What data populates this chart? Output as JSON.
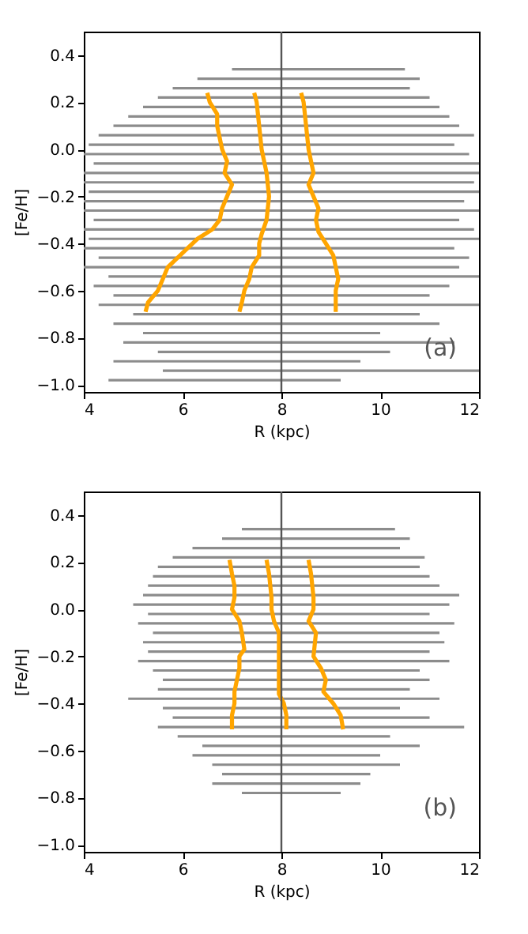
{
  "chart_data": [
    {
      "type": "line",
      "xlabel": "R (kpc)",
      "ylabel": "[Fe/H]",
      "xlim": [
        4,
        12
      ],
      "ylim": [
        -1.03,
        0.5
      ],
      "xticks": [
        4,
        6,
        8,
        10,
        12
      ],
      "yticks": [
        {
          "value": -1.0,
          "label": "−1.0"
        },
        {
          "value": -0.8,
          "label": "−0.8"
        },
        {
          "value": -0.6,
          "label": "−0.6"
        },
        {
          "value": -0.4,
          "label": "−0.4"
        },
        {
          "value": -0.2,
          "label": "−0.2"
        },
        {
          "value": 0,
          "label": "0.0"
        },
        {
          "value": 0.2,
          "label": "0.2"
        },
        {
          "value": 0.4,
          "label": "0.4"
        }
      ],
      "grid": false,
      "legend": false,
      "annotations": [
        "(a)"
      ],
      "ref_lines": [
        {
          "axis": "x",
          "value": 8,
          "color": "#555555"
        }
      ],
      "series": [
        {
          "type": "line",
          "color": "#8c8c8c",
          "x": [
            7.0,
            10.5
          ],
          "values": [
            0.34,
            0.34
          ]
        },
        {
          "type": "line",
          "color": "#8c8c8c",
          "x": [
            6.3,
            10.8
          ],
          "values": [
            0.3,
            0.3
          ]
        },
        {
          "type": "line",
          "color": "#8c8c8c",
          "x": [
            5.8,
            10.6
          ],
          "values": [
            0.26,
            0.26
          ]
        },
        {
          "type": "line",
          "color": "#8c8c8c",
          "x": [
            5.5,
            11.0
          ],
          "values": [
            0.22,
            0.22
          ]
        },
        {
          "type": "line",
          "color": "#8c8c8c",
          "x": [
            5.2,
            11.2
          ],
          "values": [
            0.18,
            0.18
          ]
        },
        {
          "type": "line",
          "color": "#8c8c8c",
          "x": [
            4.9,
            11.4
          ],
          "values": [
            0.14,
            0.14
          ]
        },
        {
          "type": "line",
          "color": "#8c8c8c",
          "x": [
            4.6,
            11.6
          ],
          "values": [
            0.1,
            0.1
          ]
        },
        {
          "type": "line",
          "color": "#8c8c8c",
          "x": [
            4.3,
            11.9
          ],
          "values": [
            0.06,
            0.06
          ]
        },
        {
          "type": "line",
          "color": "#8c8c8c",
          "x": [
            4.1,
            11.5
          ],
          "values": [
            0.02,
            0.02
          ]
        },
        {
          "type": "line",
          "color": "#8c8c8c",
          "x": [
            4.0,
            11.8
          ],
          "values": [
            -0.02,
            -0.02
          ]
        },
        {
          "type": "line",
          "color": "#8c8c8c",
          "x": [
            4.2,
            12.0
          ],
          "values": [
            -0.06,
            -0.06
          ]
        },
        {
          "type": "line",
          "color": "#8c8c8c",
          "x": [
            4.0,
            12.0
          ],
          "values": [
            -0.1,
            -0.1
          ]
        },
        {
          "type": "line",
          "color": "#8c8c8c",
          "x": [
            4.0,
            11.9
          ],
          "values": [
            -0.14,
            -0.14
          ]
        },
        {
          "type": "line",
          "color": "#8c8c8c",
          "x": [
            4.1,
            12.0
          ],
          "values": [
            -0.18,
            -0.18
          ]
        },
        {
          "type": "line",
          "color": "#8c8c8c",
          "x": [
            4.0,
            11.7
          ],
          "values": [
            -0.22,
            -0.22
          ]
        },
        {
          "type": "line",
          "color": "#8c8c8c",
          "x": [
            4.0,
            12.0
          ],
          "values": [
            -0.26,
            -0.26
          ]
        },
        {
          "type": "line",
          "color": "#8c8c8c",
          "x": [
            4.2,
            11.6
          ],
          "values": [
            -0.3,
            -0.3
          ]
        },
        {
          "type": "line",
          "color": "#8c8c8c",
          "x": [
            4.0,
            11.9
          ],
          "values": [
            -0.34,
            -0.34
          ]
        },
        {
          "type": "line",
          "color": "#8c8c8c",
          "x": [
            4.1,
            12.0
          ],
          "values": [
            -0.38,
            -0.38
          ]
        },
        {
          "type": "line",
          "color": "#8c8c8c",
          "x": [
            4.0,
            11.5
          ],
          "values": [
            -0.42,
            -0.42
          ]
        },
        {
          "type": "line",
          "color": "#8c8c8c",
          "x": [
            4.3,
            11.8
          ],
          "values": [
            -0.46,
            -0.46
          ]
        },
        {
          "type": "line",
          "color": "#8c8c8c",
          "x": [
            4.0,
            11.6
          ],
          "values": [
            -0.5,
            -0.5
          ]
        },
        {
          "type": "line",
          "color": "#8c8c8c",
          "x": [
            4.5,
            12.0
          ],
          "values": [
            -0.54,
            -0.54
          ]
        },
        {
          "type": "line",
          "color": "#8c8c8c",
          "x": [
            4.2,
            11.4
          ],
          "values": [
            -0.58,
            -0.58
          ]
        },
        {
          "type": "line",
          "color": "#8c8c8c",
          "x": [
            4.6,
            11.0
          ],
          "values": [
            -0.62,
            -0.62
          ]
        },
        {
          "type": "line",
          "color": "#8c8c8c",
          "x": [
            4.3,
            12.0
          ],
          "values": [
            -0.66,
            -0.66
          ]
        },
        {
          "type": "line",
          "color": "#8c8c8c",
          "x": [
            5.0,
            10.8
          ],
          "values": [
            -0.7,
            -0.7
          ]
        },
        {
          "type": "line",
          "color": "#8c8c8c",
          "x": [
            4.6,
            11.2
          ],
          "values": [
            -0.74,
            -0.74
          ]
        },
        {
          "type": "line",
          "color": "#8c8c8c",
          "x": [
            5.2,
            10.0
          ],
          "values": [
            -0.78,
            -0.78
          ]
        },
        {
          "type": "line",
          "color": "#8c8c8c",
          "x": [
            4.8,
            11.5
          ],
          "values": [
            -0.82,
            -0.82
          ]
        },
        {
          "type": "line",
          "color": "#8c8c8c",
          "x": [
            5.5,
            10.2
          ],
          "values": [
            -0.86,
            -0.86
          ]
        },
        {
          "type": "line",
          "color": "#8c8c8c",
          "x": [
            4.6,
            9.6
          ],
          "values": [
            -0.9,
            -0.9
          ]
        },
        {
          "type": "line",
          "color": "#8c8c8c",
          "x": [
            5.6,
            12.0
          ],
          "values": [
            -0.94,
            -0.94
          ]
        },
        {
          "type": "line",
          "color": "#8c8c8c",
          "x": [
            4.5,
            9.2
          ],
          "values": [
            -0.98,
            -0.98
          ]
        },
        {
          "type": "line",
          "color": "#ffa500",
          "x": [
            6.5,
            6.55,
            6.7,
            6.7,
            6.75,
            6.8,
            6.9,
            6.85,
            7.0,
            6.9,
            6.8,
            6.75,
            6.6,
            6.3,
            6.1,
            5.9,
            5.7,
            5.6,
            5.5,
            5.3,
            5.25
          ],
          "values": [
            0.24,
            0.2,
            0.15,
            0.1,
            0.05,
            0.0,
            -0.05,
            -0.1,
            -0.15,
            -0.2,
            -0.25,
            -0.3,
            -0.34,
            -0.38,
            -0.42,
            -0.46,
            -0.5,
            -0.55,
            -0.6,
            -0.65,
            -0.69
          ]
        },
        {
          "type": "line",
          "color": "#ffa500",
          "x": [
            7.45,
            7.5,
            7.55,
            7.6,
            7.7,
            7.75,
            7.7,
            7.6,
            7.55,
            7.55,
            7.4,
            7.35,
            7.25,
            7.2,
            7.15
          ],
          "values": [
            0.24,
            0.2,
            0.1,
            0.0,
            -0.1,
            -0.2,
            -0.3,
            -0.36,
            -0.4,
            -0.45,
            -0.5,
            -0.55,
            -0.6,
            -0.65,
            -0.69
          ]
        },
        {
          "type": "line",
          "color": "#ffa500",
          "x": [
            8.4,
            8.45,
            8.5,
            8.55,
            8.6,
            8.65,
            8.55,
            8.65,
            8.75,
            8.7,
            8.75,
            8.9,
            9.05,
            9.1,
            9.15,
            9.1,
            9.1
          ],
          "values": [
            0.24,
            0.2,
            0.1,
            0.0,
            -0.05,
            -0.1,
            -0.15,
            -0.2,
            -0.25,
            -0.3,
            -0.35,
            -0.4,
            -0.45,
            -0.5,
            -0.55,
            -0.6,
            -0.69
          ]
        }
      ]
    },
    {
      "type": "line",
      "xlabel": "R (kpc)",
      "ylabel": "[Fe/H]",
      "xlim": [
        4,
        12
      ],
      "ylim": [
        -1.03,
        0.5
      ],
      "xticks": [
        4,
        6,
        8,
        10,
        12
      ],
      "yticks": [
        {
          "value": -1.0,
          "label": "−1.0"
        },
        {
          "value": -0.8,
          "label": "−0.8"
        },
        {
          "value": -0.6,
          "label": "−0.6"
        },
        {
          "value": -0.4,
          "label": "−0.4"
        },
        {
          "value": -0.2,
          "label": "−0.2"
        },
        {
          "value": 0,
          "label": "0.0"
        },
        {
          "value": 0.2,
          "label": "0.2"
        },
        {
          "value": 0.4,
          "label": "0.4"
        }
      ],
      "grid": false,
      "legend": false,
      "annotations": [
        "(b)"
      ],
      "ref_lines": [
        {
          "axis": "x",
          "value": 8,
          "color": "#555555"
        }
      ],
      "series": [
        {
          "type": "line",
          "color": "#8c8c8c",
          "x": [
            7.2,
            10.3
          ],
          "values": [
            0.34,
            0.34
          ]
        },
        {
          "type": "line",
          "color": "#8c8c8c",
          "x": [
            6.8,
            10.6
          ],
          "values": [
            0.3,
            0.3
          ]
        },
        {
          "type": "line",
          "color": "#8c8c8c",
          "x": [
            6.2,
            10.4
          ],
          "values": [
            0.26,
            0.26
          ]
        },
        {
          "type": "line",
          "color": "#8c8c8c",
          "x": [
            5.8,
            10.9
          ],
          "values": [
            0.22,
            0.22
          ]
        },
        {
          "type": "line",
          "color": "#8c8c8c",
          "x": [
            5.5,
            10.8
          ],
          "values": [
            0.18,
            0.18
          ]
        },
        {
          "type": "line",
          "color": "#8c8c8c",
          "x": [
            5.4,
            11.0
          ],
          "values": [
            0.14,
            0.14
          ]
        },
        {
          "type": "line",
          "color": "#8c8c8c",
          "x": [
            5.3,
            11.2
          ],
          "values": [
            0.1,
            0.1
          ]
        },
        {
          "type": "line",
          "color": "#8c8c8c",
          "x": [
            5.2,
            11.6
          ],
          "values": [
            0.06,
            0.06
          ]
        },
        {
          "type": "line",
          "color": "#8c8c8c",
          "x": [
            5.0,
            11.4
          ],
          "values": [
            0.02,
            0.02
          ]
        },
        {
          "type": "line",
          "color": "#8c8c8c",
          "x": [
            5.3,
            11.0
          ],
          "values": [
            -0.02,
            -0.02
          ]
        },
        {
          "type": "line",
          "color": "#8c8c8c",
          "x": [
            5.1,
            11.5
          ],
          "values": [
            -0.06,
            -0.06
          ]
        },
        {
          "type": "line",
          "color": "#8c8c8c",
          "x": [
            5.4,
            11.2
          ],
          "values": [
            -0.1,
            -0.1
          ]
        },
        {
          "type": "line",
          "color": "#8c8c8c",
          "x": [
            5.2,
            11.3
          ],
          "values": [
            -0.14,
            -0.14
          ]
        },
        {
          "type": "line",
          "color": "#8c8c8c",
          "x": [
            5.3,
            11.0
          ],
          "values": [
            -0.18,
            -0.18
          ]
        },
        {
          "type": "line",
          "color": "#8c8c8c",
          "x": [
            5.1,
            11.4
          ],
          "values": [
            -0.22,
            -0.22
          ]
        },
        {
          "type": "line",
          "color": "#8c8c8c",
          "x": [
            5.4,
            10.8
          ],
          "values": [
            -0.26,
            -0.26
          ]
        },
        {
          "type": "line",
          "color": "#8c8c8c",
          "x": [
            5.6,
            11.0
          ],
          "values": [
            -0.3,
            -0.3
          ]
        },
        {
          "type": "line",
          "color": "#8c8c8c",
          "x": [
            5.5,
            10.6
          ],
          "values": [
            -0.34,
            -0.34
          ]
        },
        {
          "type": "line",
          "color": "#8c8c8c",
          "x": [
            4.9,
            11.2
          ],
          "values": [
            -0.38,
            -0.38
          ]
        },
        {
          "type": "line",
          "color": "#8c8c8c",
          "x": [
            5.6,
            10.4
          ],
          "values": [
            -0.42,
            -0.42
          ]
        },
        {
          "type": "line",
          "color": "#8c8c8c",
          "x": [
            5.8,
            11.0
          ],
          "values": [
            -0.46,
            -0.46
          ]
        },
        {
          "type": "line",
          "color": "#8c8c8c",
          "x": [
            5.5,
            11.7
          ],
          "values": [
            -0.5,
            -0.5
          ]
        },
        {
          "type": "line",
          "color": "#8c8c8c",
          "x": [
            5.9,
            10.2
          ],
          "values": [
            -0.54,
            -0.54
          ]
        },
        {
          "type": "line",
          "color": "#8c8c8c",
          "x": [
            6.4,
            10.8
          ],
          "values": [
            -0.58,
            -0.58
          ]
        },
        {
          "type": "line",
          "color": "#8c8c8c",
          "x": [
            6.2,
            10.0
          ],
          "values": [
            -0.62,
            -0.62
          ]
        },
        {
          "type": "line",
          "color": "#8c8c8c",
          "x": [
            6.6,
            10.4
          ],
          "values": [
            -0.66,
            -0.66
          ]
        },
        {
          "type": "line",
          "color": "#8c8c8c",
          "x": [
            6.8,
            9.8
          ],
          "values": [
            -0.7,
            -0.7
          ]
        },
        {
          "type": "line",
          "color": "#8c8c8c",
          "x": [
            6.6,
            9.6
          ],
          "values": [
            -0.74,
            -0.74
          ]
        },
        {
          "type": "line",
          "color": "#8c8c8c",
          "x": [
            7.2,
            9.2
          ],
          "values": [
            -0.78,
            -0.78
          ]
        },
        {
          "type": "line",
          "color": "#ffa500",
          "x": [
            6.95,
            7.0,
            7.05,
            7.05,
            7.0,
            7.15,
            7.2,
            7.25,
            7.15,
            7.15,
            7.1,
            7.05,
            7.05,
            7.0,
            7.0
          ],
          "values": [
            0.21,
            0.15,
            0.1,
            0.05,
            0.0,
            -0.05,
            -0.1,
            -0.17,
            -0.2,
            -0.25,
            -0.3,
            -0.35,
            -0.4,
            -0.45,
            -0.51
          ]
        },
        {
          "type": "line",
          "color": "#ffa500",
          "x": [
            7.7,
            7.75,
            7.8,
            7.8,
            7.85,
            7.95,
            7.95,
            7.95,
            7.95,
            8.05,
            8.1,
            8.1
          ],
          "values": [
            0.21,
            0.15,
            0.05,
            0.0,
            -0.05,
            -0.1,
            -0.2,
            -0.3,
            -0.36,
            -0.4,
            -0.45,
            -0.51
          ]
        },
        {
          "type": "line",
          "color": "#ffa500",
          "x": [
            8.55,
            8.6,
            8.65,
            8.65,
            8.55,
            8.7,
            8.65,
            8.8,
            8.9,
            8.85,
            9.05,
            9.2,
            9.25
          ],
          "values": [
            0.21,
            0.15,
            0.05,
            0.0,
            -0.05,
            -0.1,
            -0.2,
            -0.25,
            -0.3,
            -0.35,
            -0.4,
            -0.45,
            -0.51
          ]
        }
      ]
    }
  ]
}
